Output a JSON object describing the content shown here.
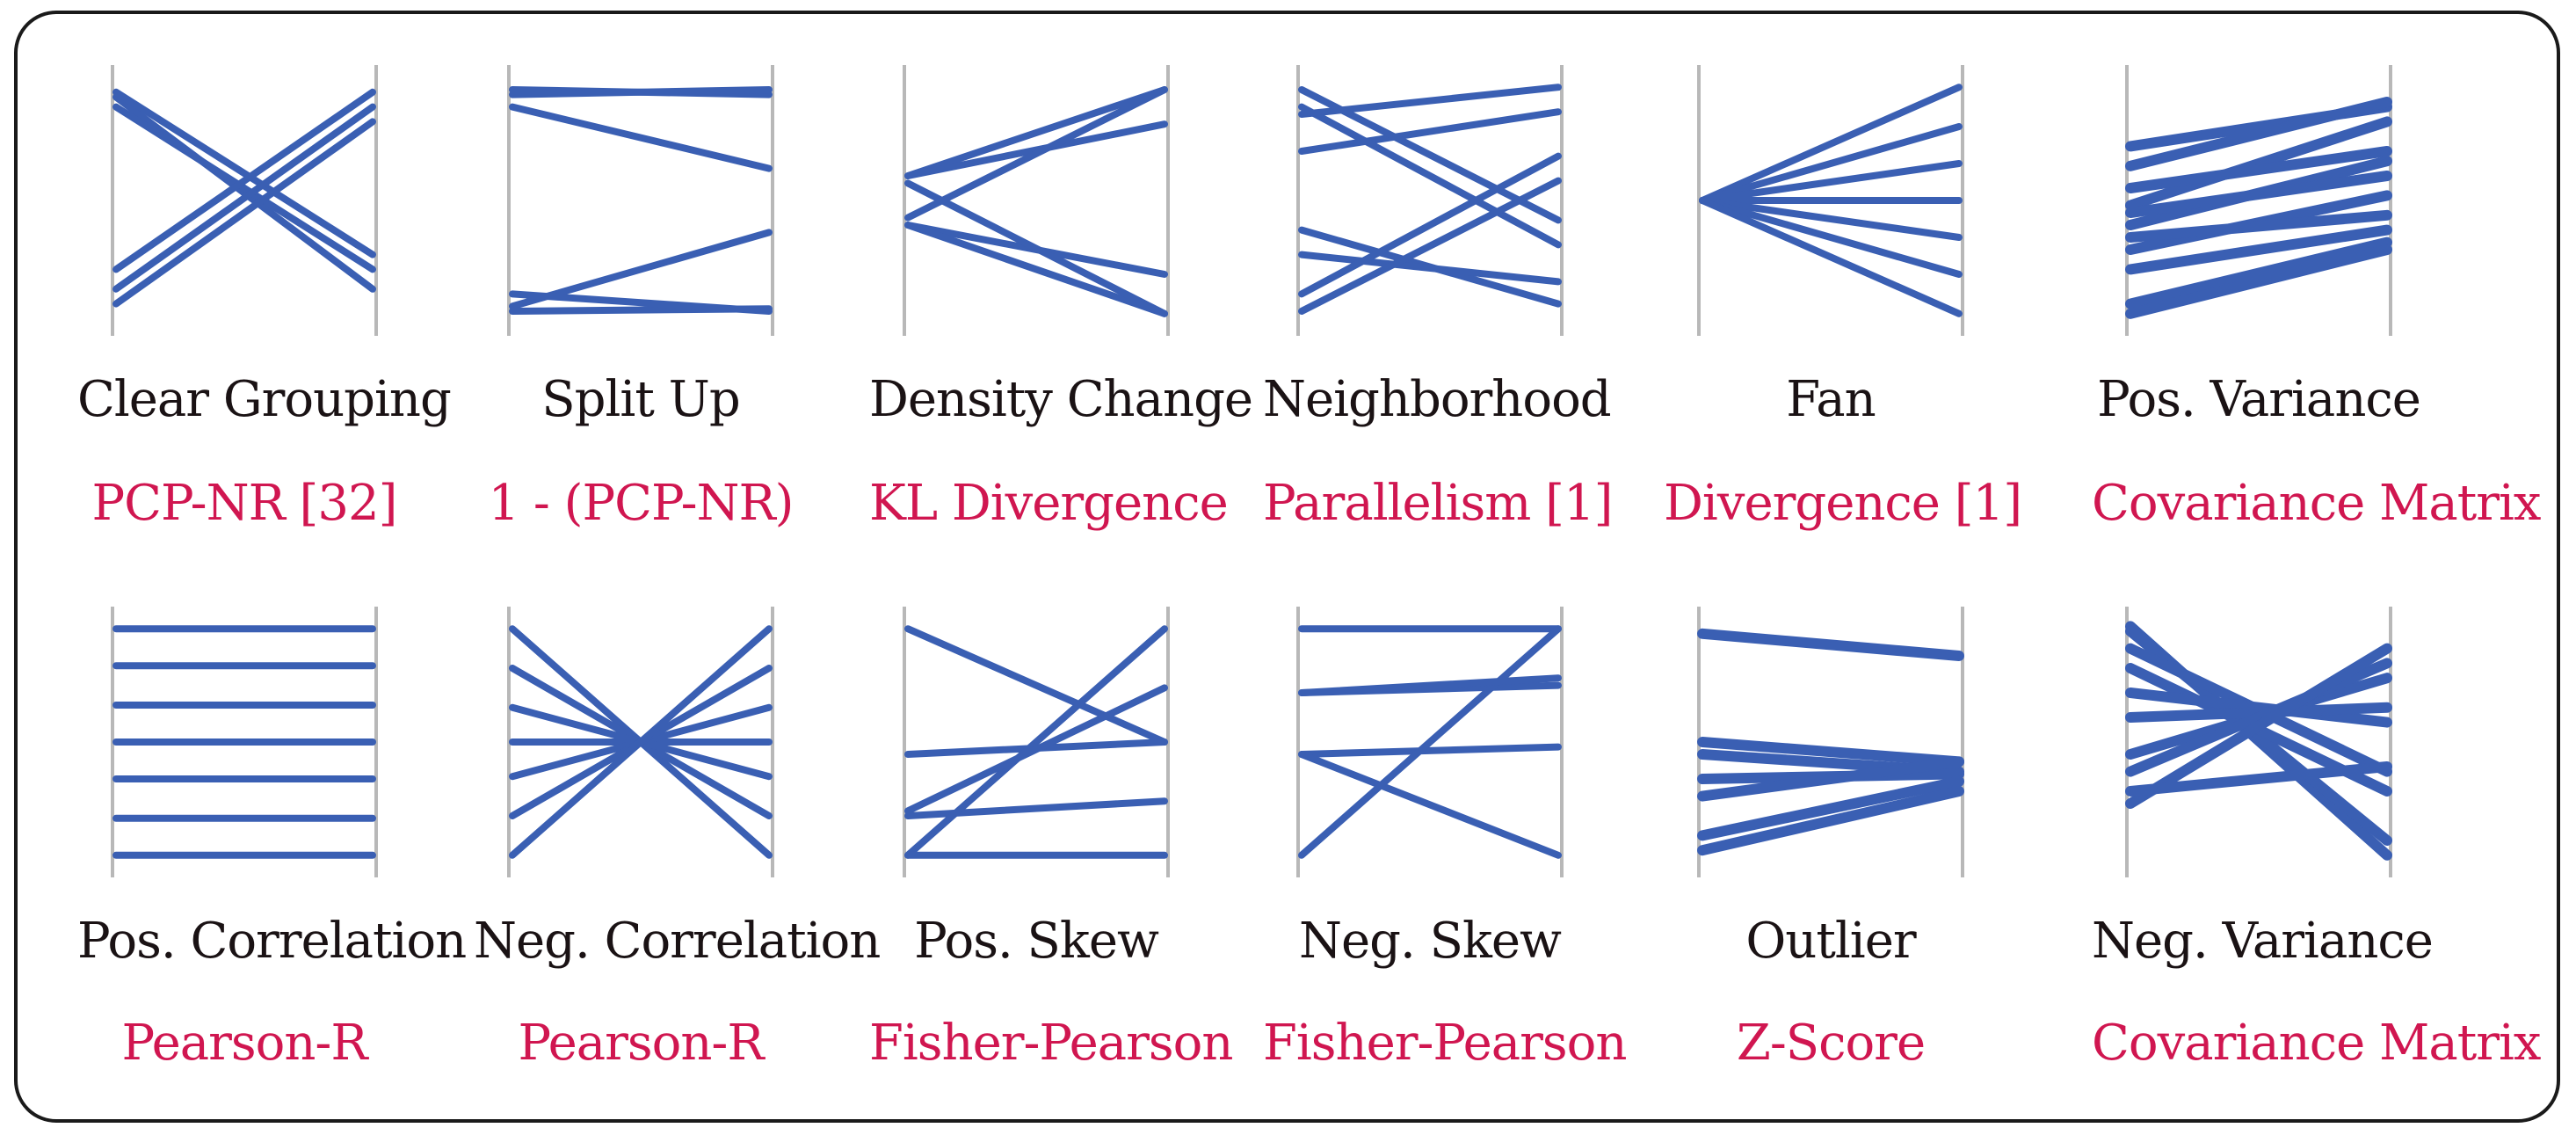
{
  "colors": {
    "line": "#3a5fb3",
    "axis": "#b8b8b8",
    "title": "#1a1214",
    "metric": "#d01650",
    "border": "#1a1a1a"
  },
  "patterns": [
    {
      "title": "Clear Grouping",
      "metric": "PCP-NR [32]",
      "thick": 8,
      "lines": [
        [
          0.08,
          0.86
        ],
        [
          0.12,
          0.78
        ],
        [
          0.06,
          0.72
        ],
        [
          0.78,
          0.06
        ],
        [
          0.86,
          0.12
        ],
        [
          0.92,
          0.18
        ]
      ]
    },
    {
      "title": "Split Up",
      "metric": "1 - (PCP-NR)",
      "thick": 8,
      "lines": [
        [
          0.05,
          0.07
        ],
        [
          0.07,
          0.05
        ],
        [
          0.12,
          0.37
        ],
        [
          0.93,
          0.63
        ],
        [
          0.95,
          0.94
        ],
        [
          0.88,
          0.95
        ]
      ]
    },
    {
      "title": "Density Change",
      "metric": "KL Divergence",
      "thick": 8,
      "lines": [
        [
          0.4,
          0.05
        ],
        [
          0.4,
          0.19
        ],
        [
          0.6,
          0.8
        ],
        [
          0.6,
          0.96
        ],
        [
          0.43,
          0.96
        ],
        [
          0.57,
          0.05
        ]
      ]
    },
    {
      "title": "Neighborhood",
      "metric": "Parallelism [1]",
      "thick": 8,
      "lines": [
        [
          0.15,
          0.04
        ],
        [
          0.3,
          0.14
        ],
        [
          0.05,
          0.58
        ],
        [
          0.12,
          0.68
        ],
        [
          0.62,
          0.92
        ],
        [
          0.72,
          0.83
        ],
        [
          0.88,
          0.32
        ],
        [
          0.95,
          0.42
        ]
      ]
    },
    {
      "title": "Fan",
      "metric": "Divergence [1]",
      "thick": 8,
      "lines": [
        [
          0.5,
          0.04
        ],
        [
          0.5,
          0.2
        ],
        [
          0.5,
          0.35
        ],
        [
          0.5,
          0.5
        ],
        [
          0.5,
          0.65
        ],
        [
          0.5,
          0.8
        ],
        [
          0.5,
          0.96
        ]
      ]
    },
    {
      "title": "Pos. Variance",
      "metric": "Covariance Matrix",
      "thick": 12,
      "lines": [
        [
          0.28,
          0.12
        ],
        [
          0.36,
          0.1
        ],
        [
          0.52,
          0.18
        ],
        [
          0.45,
          0.3
        ],
        [
          0.6,
          0.34
        ],
        [
          0.55,
          0.4
        ],
        [
          0.7,
          0.48
        ],
        [
          0.65,
          0.56
        ],
        [
          0.78,
          0.62
        ],
        [
          0.92,
          0.67
        ],
        [
          0.96,
          0.7
        ]
      ]
    },
    {
      "title": "Pos. Correlation",
      "metric": "Pearson-R",
      "thick": 8,
      "lines": [
        [
          0.04,
          0.04
        ],
        [
          0.19,
          0.19
        ],
        [
          0.35,
          0.35
        ],
        [
          0.5,
          0.5
        ],
        [
          0.65,
          0.65
        ],
        [
          0.81,
          0.81
        ],
        [
          0.96,
          0.96
        ]
      ]
    },
    {
      "title": "Neg. Correlation",
      "metric": "Pearson-R",
      "thick": 8,
      "lines": [
        [
          0.04,
          0.96
        ],
        [
          0.2,
          0.8
        ],
        [
          0.36,
          0.64
        ],
        [
          0.5,
          0.5
        ],
        [
          0.64,
          0.36
        ],
        [
          0.8,
          0.2
        ],
        [
          0.96,
          0.04
        ]
      ]
    },
    {
      "title": "Pos. Skew",
      "metric": "Fisher-Pearson",
      "thick": 8,
      "lines": [
        [
          0.04,
          0.5
        ],
        [
          0.55,
          0.5
        ],
        [
          0.8,
          0.74
        ],
        [
          0.96,
          0.04
        ],
        [
          0.96,
          0.96
        ],
        [
          0.78,
          0.28
        ]
      ]
    },
    {
      "title": "Neg. Skew",
      "metric": "Fisher-Pearson",
      "thick": 8,
      "lines": [
        [
          0.04,
          0.04
        ],
        [
          0.3,
          0.27
        ],
        [
          0.55,
          0.52
        ],
        [
          0.55,
          0.96
        ],
        [
          0.96,
          0.04
        ],
        [
          0.3,
          0.24
        ]
      ]
    },
    {
      "title": "Outlier",
      "metric": "Z-Score",
      "thick": 12,
      "lines": [
        [
          0.06,
          0.15
        ],
        [
          0.5,
          0.58
        ],
        [
          0.55,
          0.62
        ],
        [
          0.65,
          0.63
        ],
        [
          0.72,
          0.58
        ],
        [
          0.88,
          0.66
        ],
        [
          0.94,
          0.7
        ]
      ]
    },
    {
      "title": "Neg. Variance",
      "metric": "Covariance Matrix",
      "thick": 12,
      "lines": [
        [
          0.03,
          0.96
        ],
        [
          0.05,
          0.9
        ],
        [
          0.2,
          0.7
        ],
        [
          0.12,
          0.62
        ],
        [
          0.3,
          0.42
        ],
        [
          0.55,
          0.24
        ],
        [
          0.4,
          0.36
        ],
        [
          0.62,
          0.18
        ],
        [
          0.75,
          0.12
        ],
        [
          0.7,
          0.6
        ]
      ]
    }
  ]
}
